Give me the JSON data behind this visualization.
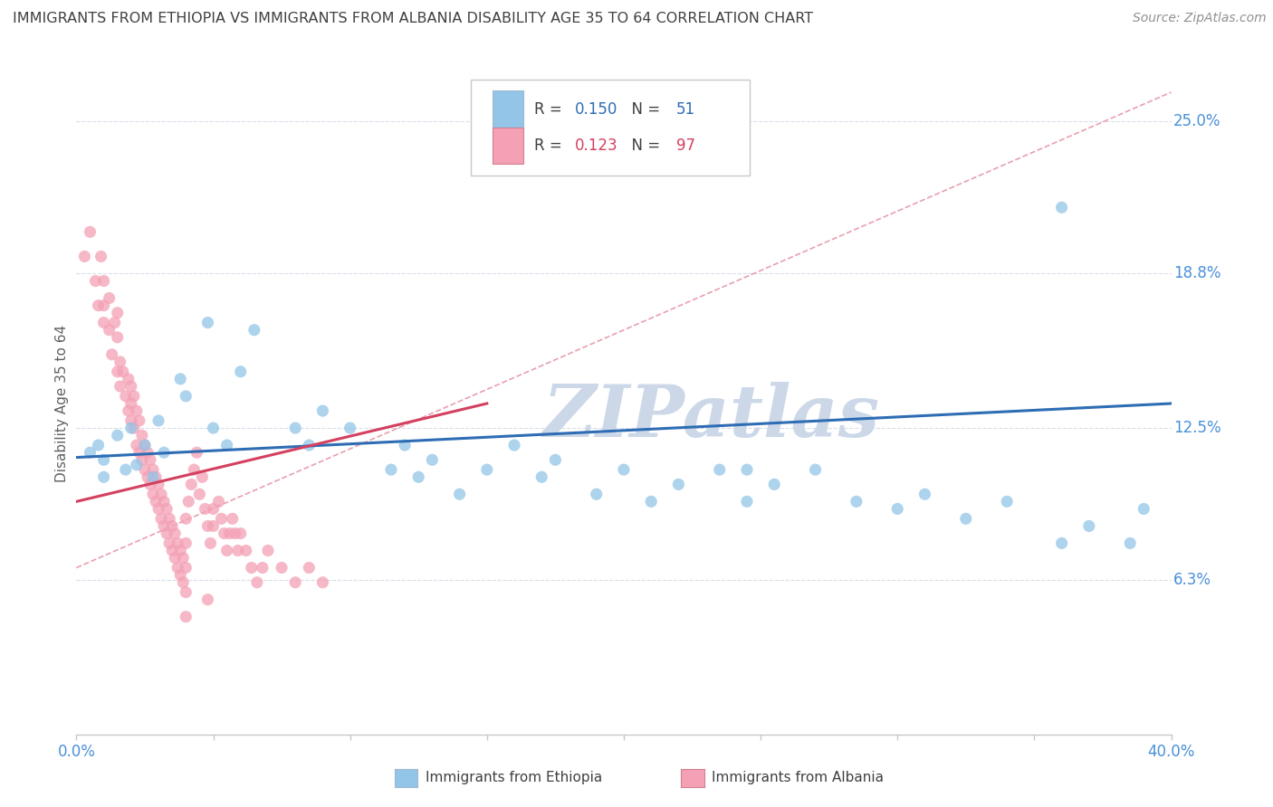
{
  "title": "IMMIGRANTS FROM ETHIOPIA VS IMMIGRANTS FROM ALBANIA DISABILITY AGE 35 TO 64 CORRELATION CHART",
  "source": "Source: ZipAtlas.com",
  "ylabel": "Disability Age 35 to 64",
  "xlim": [
    0.0,
    0.4
  ],
  "ylim": [
    0.0,
    0.27
  ],
  "ytick_values": [
    0.063,
    0.125,
    0.188,
    0.25
  ],
  "ytick_labels": [
    "6.3%",
    "12.5%",
    "18.8%",
    "25.0%"
  ],
  "ethiopia_color": "#92c5e8",
  "albania_color": "#f4a0b5",
  "ethiopia_R": 0.15,
  "ethiopia_N": 51,
  "albania_R": 0.123,
  "albania_N": 97,
  "ethiopia_scatter": [
    [
      0.005,
      0.115
    ],
    [
      0.008,
      0.118
    ],
    [
      0.01,
      0.112
    ],
    [
      0.01,
      0.105
    ],
    [
      0.015,
      0.122
    ],
    [
      0.018,
      0.108
    ],
    [
      0.02,
      0.125
    ],
    [
      0.022,
      0.11
    ],
    [
      0.025,
      0.118
    ],
    [
      0.028,
      0.105
    ],
    [
      0.03,
      0.128
    ],
    [
      0.032,
      0.115
    ],
    [
      0.038,
      0.145
    ],
    [
      0.04,
      0.138
    ],
    [
      0.048,
      0.168
    ],
    [
      0.05,
      0.125
    ],
    [
      0.055,
      0.118
    ],
    [
      0.06,
      0.148
    ],
    [
      0.065,
      0.165
    ],
    [
      0.08,
      0.125
    ],
    [
      0.085,
      0.118
    ],
    [
      0.09,
      0.132
    ],
    [
      0.1,
      0.125
    ],
    [
      0.115,
      0.108
    ],
    [
      0.12,
      0.118
    ],
    [
      0.125,
      0.105
    ],
    [
      0.13,
      0.112
    ],
    [
      0.14,
      0.098
    ],
    [
      0.15,
      0.108
    ],
    [
      0.16,
      0.118
    ],
    [
      0.17,
      0.105
    ],
    [
      0.175,
      0.112
    ],
    [
      0.19,
      0.098
    ],
    [
      0.2,
      0.108
    ],
    [
      0.21,
      0.095
    ],
    [
      0.22,
      0.102
    ],
    [
      0.235,
      0.108
    ],
    [
      0.245,
      0.095
    ],
    [
      0.255,
      0.102
    ],
    [
      0.27,
      0.108
    ],
    [
      0.285,
      0.095
    ],
    [
      0.3,
      0.092
    ],
    [
      0.31,
      0.098
    ],
    [
      0.325,
      0.088
    ],
    [
      0.34,
      0.095
    ],
    [
      0.36,
      0.078
    ],
    [
      0.37,
      0.085
    ],
    [
      0.385,
      0.078
    ],
    [
      0.39,
      0.092
    ],
    [
      0.36,
      0.215
    ],
    [
      0.245,
      0.108
    ]
  ],
  "albania_scatter": [
    [
      0.003,
      0.195
    ],
    [
      0.005,
      0.205
    ],
    [
      0.007,
      0.185
    ],
    [
      0.008,
      0.175
    ],
    [
      0.009,
      0.195
    ],
    [
      0.01,
      0.168
    ],
    [
      0.01,
      0.185
    ],
    [
      0.01,
      0.175
    ],
    [
      0.012,
      0.165
    ],
    [
      0.012,
      0.178
    ],
    [
      0.013,
      0.155
    ],
    [
      0.014,
      0.168
    ],
    [
      0.015,
      0.148
    ],
    [
      0.015,
      0.162
    ],
    [
      0.015,
      0.172
    ],
    [
      0.016,
      0.152
    ],
    [
      0.016,
      0.142
    ],
    [
      0.017,
      0.148
    ],
    [
      0.018,
      0.138
    ],
    [
      0.019,
      0.145
    ],
    [
      0.019,
      0.132
    ],
    [
      0.02,
      0.142
    ],
    [
      0.02,
      0.128
    ],
    [
      0.02,
      0.135
    ],
    [
      0.021,
      0.125
    ],
    [
      0.021,
      0.138
    ],
    [
      0.022,
      0.132
    ],
    [
      0.022,
      0.118
    ],
    [
      0.023,
      0.128
    ],
    [
      0.023,
      0.115
    ],
    [
      0.024,
      0.122
    ],
    [
      0.024,
      0.112
    ],
    [
      0.025,
      0.118
    ],
    [
      0.025,
      0.108
    ],
    [
      0.026,
      0.115
    ],
    [
      0.026,
      0.105
    ],
    [
      0.027,
      0.112
    ],
    [
      0.027,
      0.102
    ],
    [
      0.028,
      0.108
    ],
    [
      0.028,
      0.098
    ],
    [
      0.029,
      0.105
    ],
    [
      0.029,
      0.095
    ],
    [
      0.03,
      0.102
    ],
    [
      0.03,
      0.092
    ],
    [
      0.031,
      0.098
    ],
    [
      0.031,
      0.088
    ],
    [
      0.032,
      0.095
    ],
    [
      0.032,
      0.085
    ],
    [
      0.033,
      0.092
    ],
    [
      0.033,
      0.082
    ],
    [
      0.034,
      0.088
    ],
    [
      0.034,
      0.078
    ],
    [
      0.035,
      0.085
    ],
    [
      0.035,
      0.075
    ],
    [
      0.036,
      0.082
    ],
    [
      0.036,
      0.072
    ],
    [
      0.037,
      0.078
    ],
    [
      0.037,
      0.068
    ],
    [
      0.038,
      0.075
    ],
    [
      0.038,
      0.065
    ],
    [
      0.039,
      0.072
    ],
    [
      0.039,
      0.062
    ],
    [
      0.04,
      0.068
    ],
    [
      0.04,
      0.058
    ],
    [
      0.04,
      0.078
    ],
    [
      0.04,
      0.088
    ],
    [
      0.041,
      0.095
    ],
    [
      0.042,
      0.102
    ],
    [
      0.043,
      0.108
    ],
    [
      0.044,
      0.115
    ],
    [
      0.045,
      0.098
    ],
    [
      0.046,
      0.105
    ],
    [
      0.047,
      0.092
    ],
    [
      0.048,
      0.085
    ],
    [
      0.049,
      0.078
    ],
    [
      0.05,
      0.085
    ],
    [
      0.05,
      0.092
    ],
    [
      0.052,
      0.095
    ],
    [
      0.053,
      0.088
    ],
    [
      0.054,
      0.082
    ],
    [
      0.055,
      0.075
    ],
    [
      0.056,
      0.082
    ],
    [
      0.057,
      0.088
    ],
    [
      0.058,
      0.082
    ],
    [
      0.059,
      0.075
    ],
    [
      0.06,
      0.082
    ],
    [
      0.062,
      0.075
    ],
    [
      0.064,
      0.068
    ],
    [
      0.066,
      0.062
    ],
    [
      0.068,
      0.068
    ],
    [
      0.07,
      0.075
    ],
    [
      0.075,
      0.068
    ],
    [
      0.08,
      0.062
    ],
    [
      0.085,
      0.068
    ],
    [
      0.09,
      0.062
    ],
    [
      0.048,
      0.055
    ],
    [
      0.04,
      0.048
    ]
  ],
  "watermark": "ZIPatlas",
  "watermark_color": "#ccd8e8",
  "grid_color": "#d8dde8",
  "trend_line_ethiopia": {
    "x0": 0.0,
    "y0": 0.113,
    "x1": 0.4,
    "y1": 0.135
  },
  "trend_line_albania": {
    "x0": 0.0,
    "y0": 0.095,
    "x1": 0.15,
    "y1": 0.135
  },
  "ref_line_blue": {
    "x0": 0.0,
    "y0": 0.113,
    "x1": 0.4,
    "y1": 0.135
  },
  "ref_line_pink": {
    "x0": 0.0,
    "y0": 0.068,
    "x1": 0.4,
    "y1": 0.262
  }
}
